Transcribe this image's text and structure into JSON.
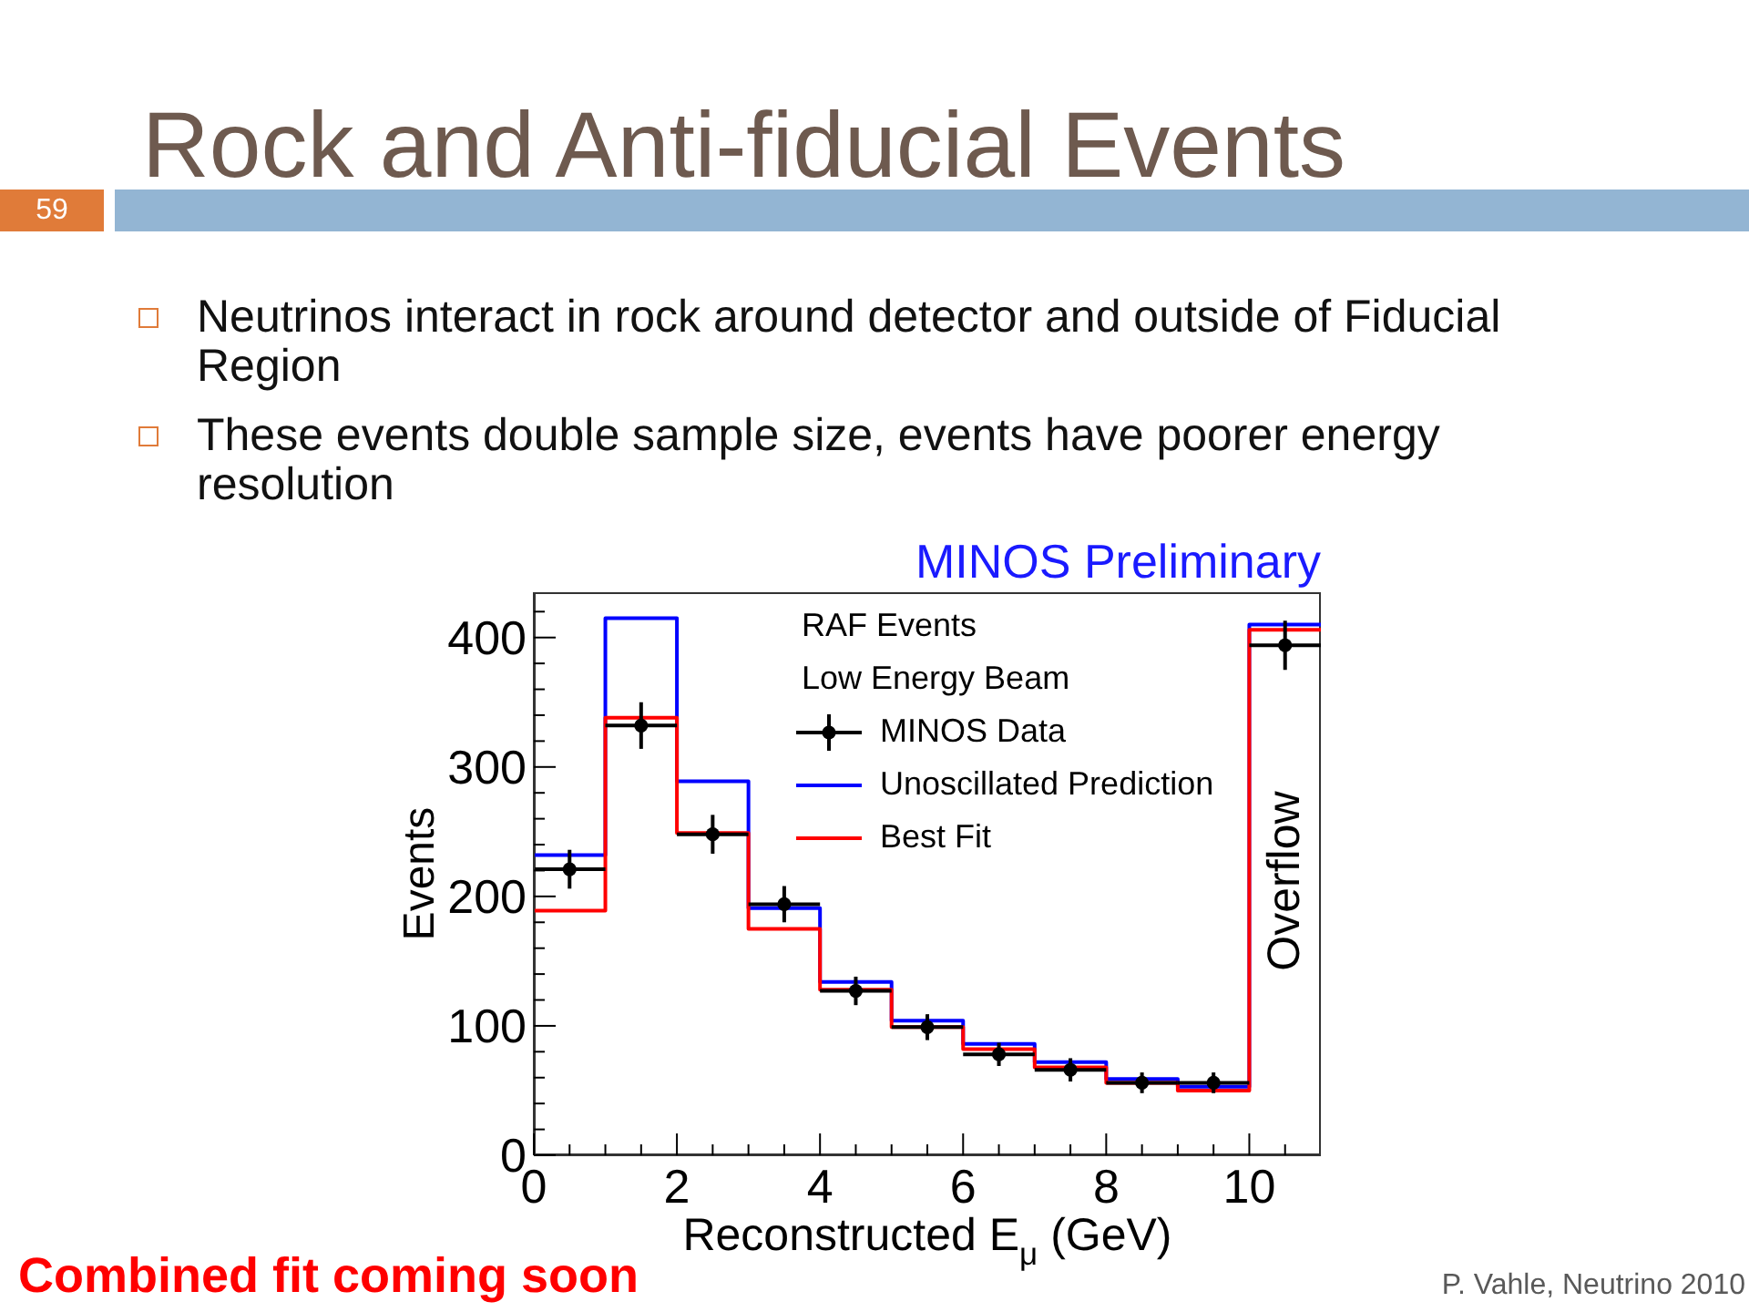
{
  "chart_data": {
    "type": "histogram",
    "title": "Rock and Anti-fiducial Events",
    "subtitle": "MINOS Preliminary",
    "xlabel": "Reconstructed E$_{μ}$ (GeV)",
    "ylabel": "Events",
    "annotations": [
      "59",
      "Neutrinos interact in rock around detector and outside of Fiducial Region",
      "These events double sample size, events have poorer energy resolution",
      "RAF Events",
      "Low Energy Beam",
      "Overflow",
      "Combined fit coming soon",
      "P. Vahle, Neutrino 2010"
    ],
    "bins": [
      0,
      1,
      2,
      3,
      4,
      5,
      6,
      7,
      8,
      9,
      10,
      11
    ],
    "series": [
      {
        "name": "MINOS Data",
        "type": "scatter",
        "color": "#000000",
        "marker": "circle",
        "x": [
          0.5,
          1.5,
          2.5,
          3.5,
          4.5,
          5.5,
          6.5,
          7.5,
          8.5,
          9.5,
          10.5
        ],
        "values": [
          221,
          332,
          248,
          194,
          127,
          99,
          78,
          66,
          56,
          56,
          394
        ],
        "errors": [
          15,
          18,
          15,
          14,
          11,
          10,
          9,
          9,
          8,
          8,
          19
        ],
        "xerrors": [
          0.5,
          0.5,
          0.5,
          0.5,
          0.5,
          0.5,
          0.5,
          0.5,
          0.5,
          0.5,
          0.5
        ]
      },
      {
        "name": "Unoscillated Prediction",
        "color": "#0000ff",
        "values": [
          232,
          415,
          289,
          191,
          134,
          104,
          86,
          72,
          59,
          53,
          410
        ]
      },
      {
        "name": "Best Fit",
        "color": "#ff0000",
        "values": [
          189,
          338,
          249,
          175,
          128,
          99,
          82,
          68,
          56,
          50,
          406
        ]
      }
    ],
    "xlim": [
      0,
      11
    ],
    "xticks": [
      0,
      {
        "value": 0.5,
        "label": null
      },
      {
        "value": 1,
        "label": null
      },
      {
        "value": 1.5,
        "label": null
      },
      2,
      {
        "value": 2.5,
        "label": null
      },
      {
        "value": 3,
        "label": null
      },
      {
        "value": 3.5,
        "label": null
      },
      4,
      {
        "value": 4.5,
        "label": null
      },
      {
        "value": 5,
        "label": null
      },
      {
        "value": 5.5,
        "label": null
      },
      6,
      {
        "value": 6.5,
        "label": null
      },
      {
        "value": 7,
        "label": null
      },
      {
        "value": 7.5,
        "label": null
      },
      8,
      {
        "value": 8.5,
        "label": null
      },
      {
        "value": 9,
        "label": null
      },
      {
        "value": 9.5,
        "label": null
      },
      10,
      {
        "value": 10.5,
        "label": null
      }
    ],
    "ylim": [
      0,
      435
    ],
    "yticks": [
      0,
      {
        "value": 20,
        "label": null
      },
      {
        "value": 40,
        "label": null
      },
      {
        "value": 60,
        "label": null
      },
      {
        "value": 80,
        "label": null
      },
      100,
      {
        "value": 120,
        "label": null
      },
      {
        "value": 140,
        "label": null
      },
      {
        "value": 160,
        "label": null
      },
      {
        "value": 180,
        "label": null
      },
      200,
      {
        "value": 220,
        "label": null
      },
      {
        "value": 240,
        "label": null
      },
      {
        "value": 260,
        "label": null
      },
      {
        "value": 280,
        "label": null
      },
      300,
      {
        "value": 320,
        "label": null
      },
      {
        "value": 340,
        "label": null
      },
      {
        "value": 360,
        "label": null
      },
      {
        "value": 380,
        "label": null
      },
      400,
      {
        "value": 420,
        "label": null
      }
    ],
    "legend": "top right"
  }
}
